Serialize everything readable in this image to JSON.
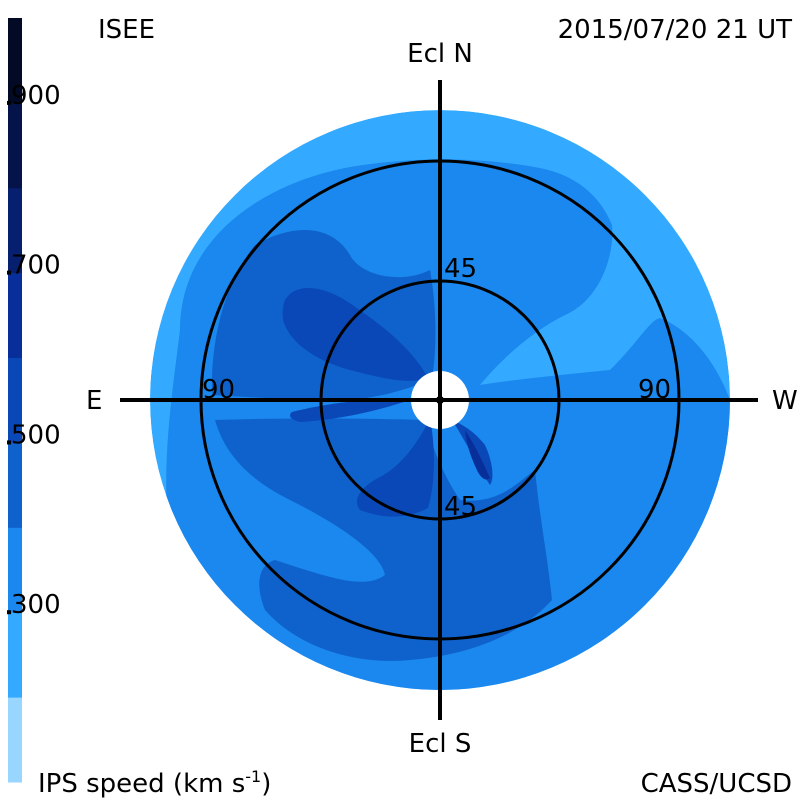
{
  "header": {
    "org": "ISEE",
    "datetime": "2015/07/20 21 UT"
  },
  "footer": {
    "quantity": "IPS speed (km s",
    "exponent": "-1",
    "close_paren": ")",
    "credit": "CASS/UCSD"
  },
  "axes": {
    "north": "Ecl N",
    "south": "Ecl S",
    "east": "E",
    "west": "W"
  },
  "rings": {
    "inner_label": "45",
    "outer_label": "90"
  },
  "colorbar": {
    "ticks": [
      {
        "label": "900",
        "value": 900
      },
      {
        "label": "700",
        "value": 700
      },
      {
        "label": "500",
        "value": 500
      },
      {
        "label": "300",
        "value": 300
      }
    ],
    "bands": [
      {
        "from": 100,
        "to": 200,
        "color": "#99d6ff"
      },
      {
        "from": 200,
        "to": 300,
        "color": "#33aaff"
      },
      {
        "from": 300,
        "to": 400,
        "color": "#1a88ee"
      },
      {
        "from": 400,
        "to": 500,
        "color": "#0f62cc"
      },
      {
        "from": 500,
        "to": 600,
        "color": "#0a48b8"
      },
      {
        "from": 600,
        "to": 700,
        "color": "#082f99"
      },
      {
        "from": 700,
        "to": 800,
        "color": "#061f6e"
      },
      {
        "from": 800,
        "to": 900,
        "color": "#04144a"
      },
      {
        "from": 900,
        "to": 1000,
        "color": "#020a26"
      }
    ]
  }
}
